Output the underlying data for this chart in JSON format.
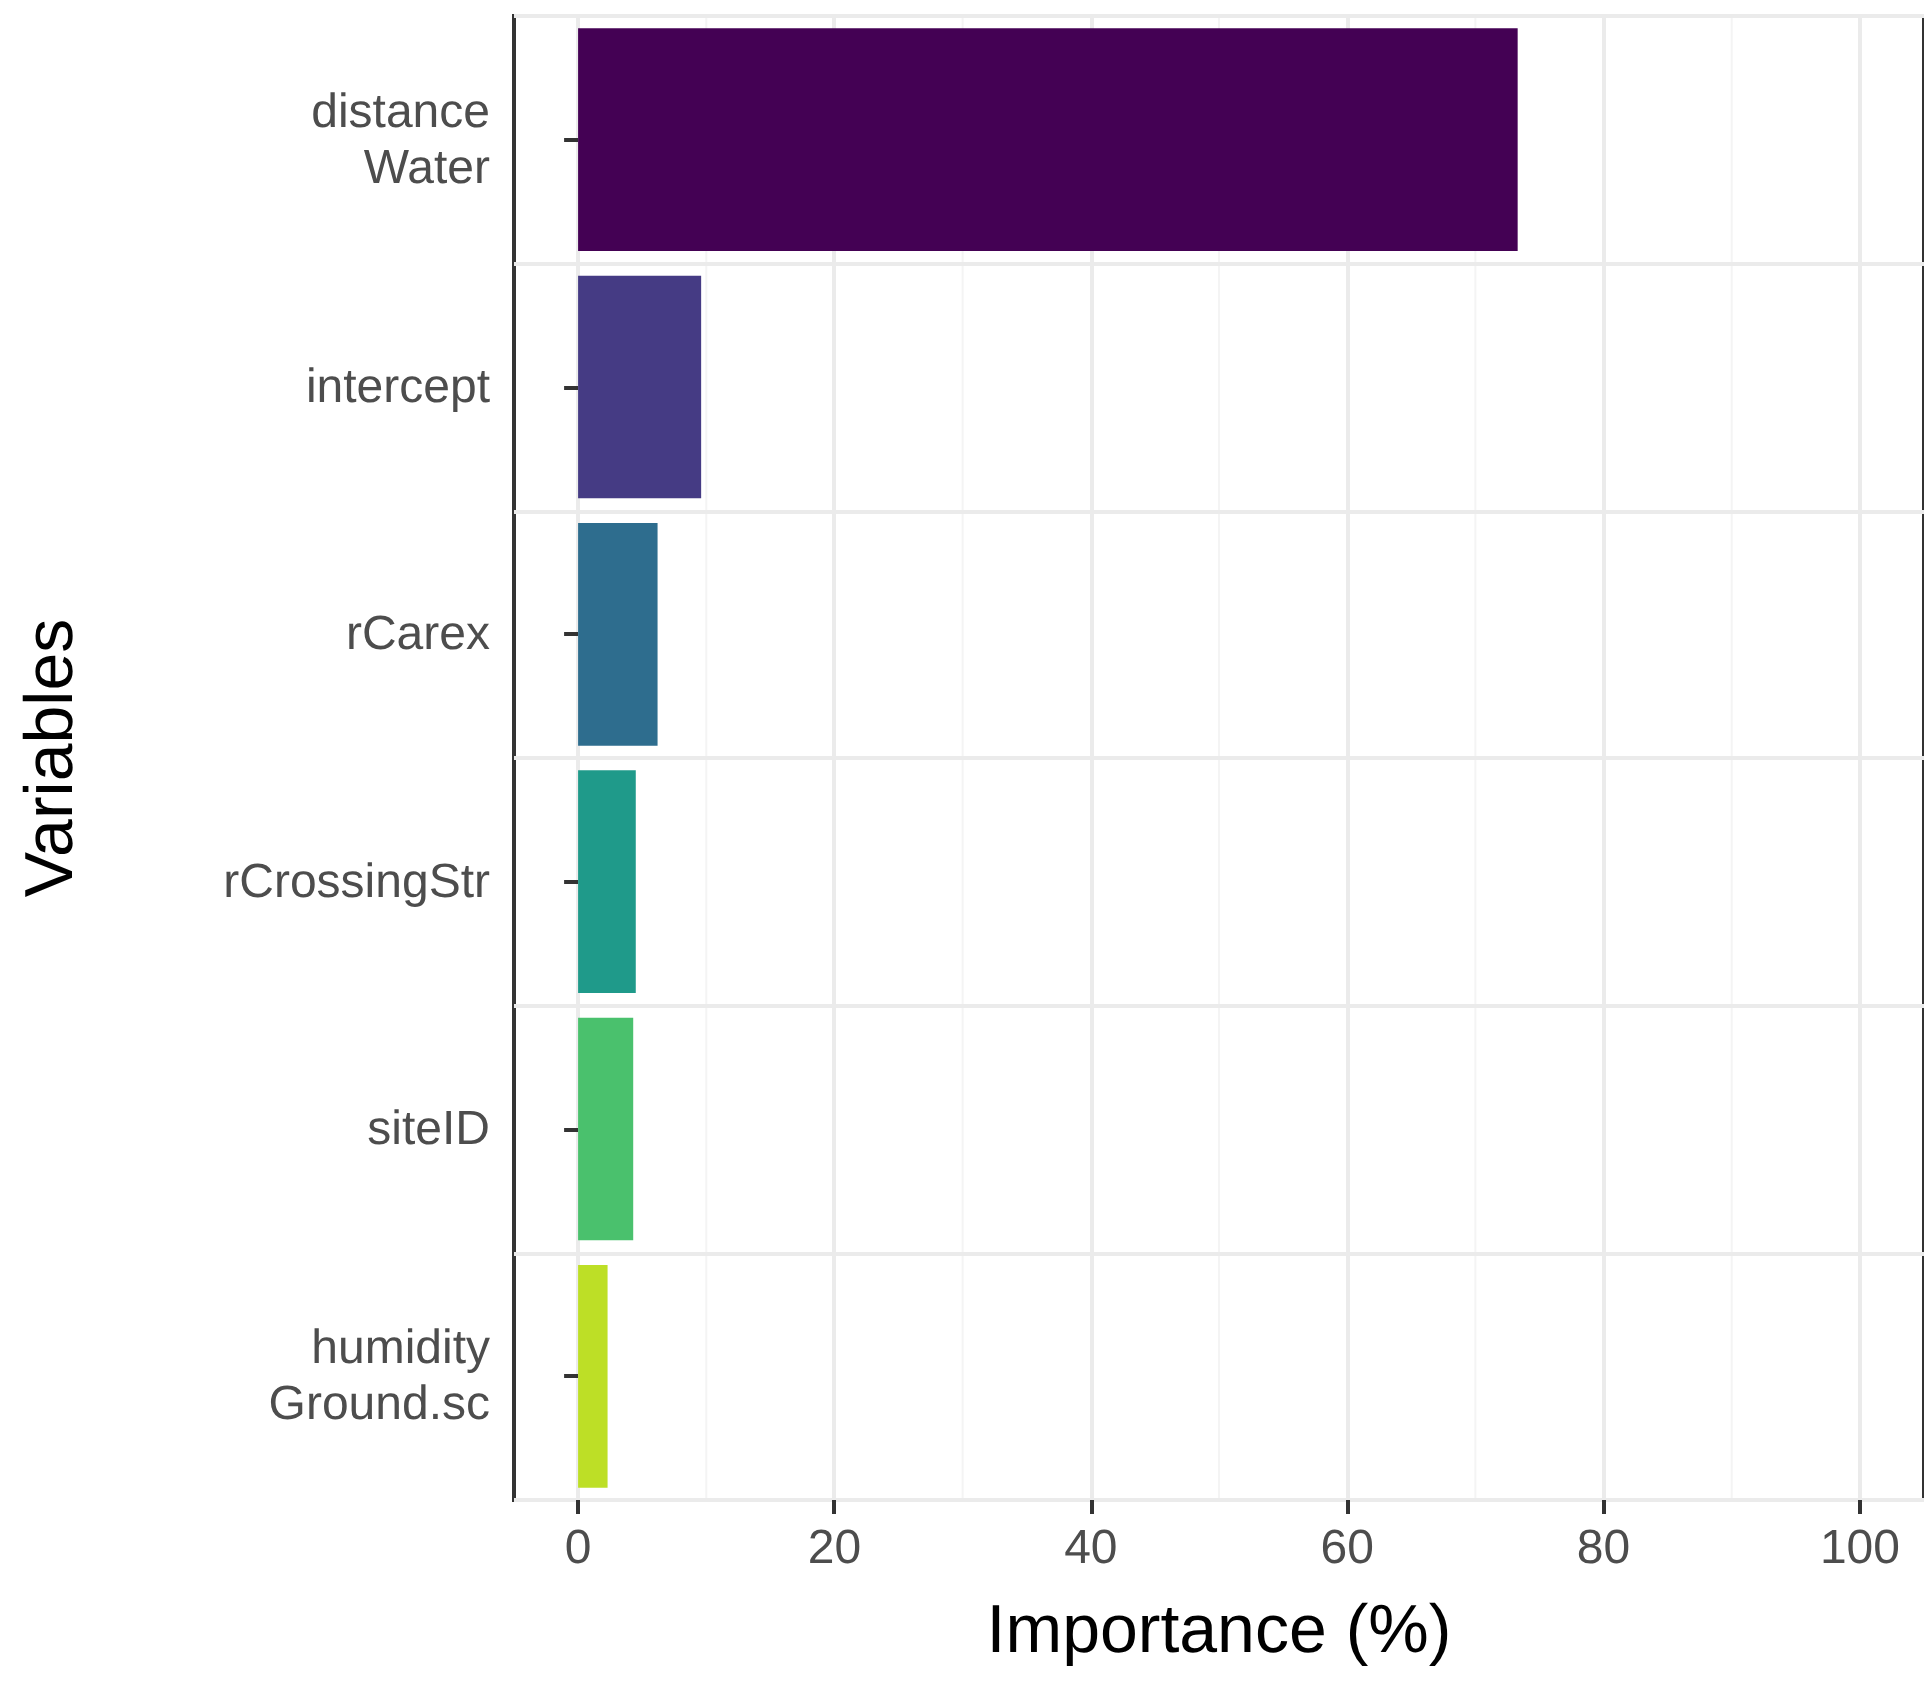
{
  "chart_data": {
    "type": "bar",
    "orientation": "horizontal",
    "xlabel": "Importance (%)",
    "ylabel": "Variables",
    "categories": [
      "distance\nWater",
      "intercept",
      "rCarex",
      "rCrossingStr",
      "siteID",
      "humidity\nGround.sc"
    ],
    "values": [
      73.3,
      9.6,
      6.2,
      4.5,
      4.3,
      2.3
    ],
    "colors": [
      "#440154",
      "#453b84",
      "#2e6d8e",
      "#1f9a8a",
      "#4ac16d",
      "#bddf26"
    ],
    "xlim": [
      -5,
      105
    ],
    "xticks": [
      0,
      20,
      40,
      60,
      80,
      100
    ],
    "grid": true
  }
}
